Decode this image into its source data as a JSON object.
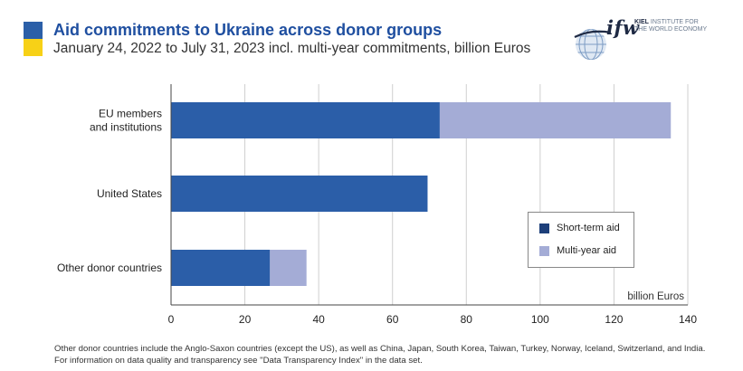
{
  "header": {
    "title": "Aid commitments to Ukraine across donor groups",
    "subtitle": "January 24, 2022 to July 31, 2023 incl. multi-year commitments, billion Euros",
    "flag_colors": [
      "#2b5fa8",
      "#f7d117"
    ]
  },
  "logo": {
    "mark": "ifw",
    "line1": "KIEL",
    "line1_rest": " INSTITUTE FOR",
    "line2": "THE WORLD ECONOMY"
  },
  "chart_data": {
    "type": "bar",
    "orientation": "horizontal",
    "stacked": true,
    "categories": [
      "EU members\nand institutions",
      "United States",
      "Other donor countries"
    ],
    "series": [
      {
        "name": "Short-term aid",
        "values": [
          72.8,
          69.5,
          26.8
        ],
        "color": "#2b5ea8"
      },
      {
        "name": "Multi-year aid",
        "values": [
          62.6,
          0,
          9.9
        ],
        "color": "#a4acd6"
      }
    ],
    "xlim": [
      0,
      140
    ],
    "xticks": [
      0,
      20,
      40,
      60,
      80,
      100,
      120,
      140
    ],
    "xlabel": "billion Euros",
    "grid": true,
    "legend_position": "right"
  },
  "legend": {
    "items": [
      {
        "label": "Short-term aid",
        "color": "#1d3f7a"
      },
      {
        "label": "Multi-year aid",
        "color": "#a4acd6"
      }
    ]
  },
  "footnote": "Other donor countries include the Anglo-Saxon countries (except the US), as well as China, Japan, South Korea, Taiwan, Turkey, Norway, Iceland, Switzerland, and India. For information on data quality and transparency see \"Data Transparency Index\" in the data set."
}
